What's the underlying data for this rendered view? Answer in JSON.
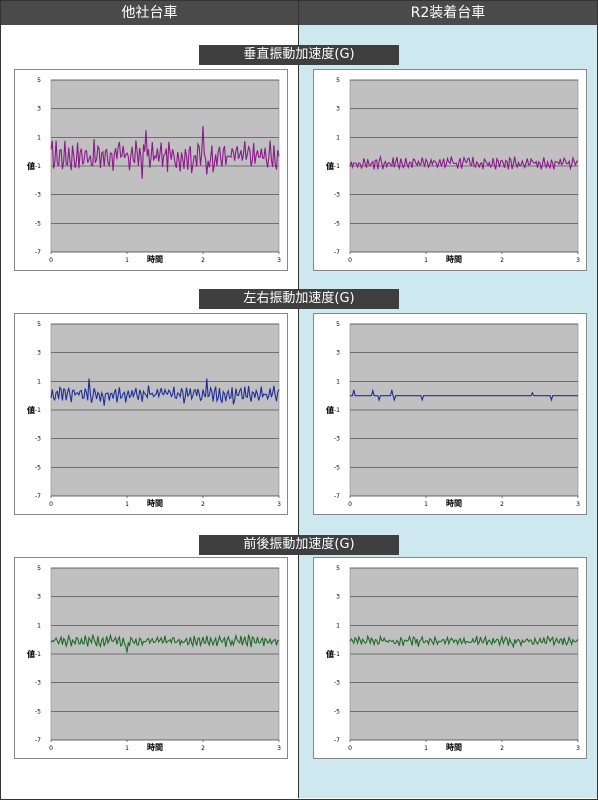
{
  "headers": {
    "left": "他社台車",
    "right": "R2装着台車"
  },
  "sections": [
    {
      "title": "垂直振動加速度(G)"
    },
    {
      "title": "左右振動加速度(G)"
    },
    {
      "title": "前後振動加速度(G)"
    }
  ],
  "colors": {
    "vertical": "#8b1a8b",
    "lateral": "#1f2f9a",
    "longitudinal": "#1f6b2a",
    "plot_bg": "#c0c0c0"
  },
  "chart_data": [
    {
      "id": "vert-other",
      "type": "line",
      "section": 0,
      "column": "left",
      "xlabel": "時間",
      "ylabel": "値",
      "xlim": [
        0,
        3
      ],
      "ylim": [
        -7,
        5
      ],
      "x_ticks": [
        "0",
        "1",
        "2",
        "3"
      ],
      "y_ticks": [
        "5",
        "3",
        "1",
        "-1",
        "-3",
        "-5",
        "-7"
      ],
      "series": [
        {
          "color": "#8b1a8b",
          "baseline": -0.3,
          "amplitude": 1.0,
          "spikes": [
            [
              1.2,
              -1.9
            ],
            [
              1.25,
              1.5
            ],
            [
              2.0,
              1.8
            ],
            [
              2.05,
              -1.6
            ],
            [
              1.85,
              -1.5
            ]
          ]
        }
      ]
    },
    {
      "id": "vert-r2",
      "type": "line",
      "section": 0,
      "column": "right",
      "xlabel": "時間",
      "ylabel": "値",
      "xlim": [
        0,
        3
      ],
      "ylim": [
        -7,
        5
      ],
      "x_ticks": [
        "0",
        "1",
        "2",
        "3"
      ],
      "y_ticks": [
        "5",
        "3",
        "1",
        "-1",
        "-3",
        "-5",
        "-7"
      ],
      "series": [
        {
          "color": "#8b1a8b",
          "baseline": -0.8,
          "amplitude": 0.4,
          "spikes": []
        }
      ]
    },
    {
      "id": "lat-other",
      "type": "line",
      "section": 1,
      "column": "left",
      "xlabel": "時間",
      "ylabel": "値",
      "xlim": [
        0,
        3
      ],
      "ylim": [
        -7,
        5
      ],
      "x_ticks": [
        "0",
        "1",
        "2",
        "3"
      ],
      "y_ticks": [
        "5",
        "3",
        "1",
        "-1",
        "-3",
        "-5",
        "-7"
      ],
      "series": [
        {
          "color": "#1f2f9a",
          "baseline": 0.1,
          "amplitude": 0.55,
          "spikes": [
            [
              0.5,
              1.2
            ],
            [
              2.05,
              1.2
            ],
            [
              0.7,
              -0.7
            ],
            [
              2.4,
              -0.6
            ]
          ]
        }
      ]
    },
    {
      "id": "lat-r2",
      "type": "line",
      "section": 1,
      "column": "right",
      "xlabel": "時間",
      "ylabel": "値",
      "xlim": [
        0,
        3
      ],
      "ylim": [
        -7,
        5
      ],
      "x_ticks": [
        "0",
        "1",
        "2",
        "3"
      ],
      "y_ticks": [
        "5",
        "3",
        "1",
        "-1",
        "-3",
        "-5",
        "-7"
      ],
      "series": [
        {
          "color": "#1f2f9a",
          "baseline": 0.0,
          "amplitude": 0.0,
          "spikes": [
            [
              0.05,
              0.4
            ],
            [
              0.3,
              0.35
            ],
            [
              0.38,
              -0.3
            ],
            [
              0.55,
              0.4
            ],
            [
              0.58,
              -0.3
            ],
            [
              0.95,
              -0.3
            ],
            [
              2.4,
              0.2
            ],
            [
              2.65,
              -0.3
            ]
          ]
        }
      ]
    },
    {
      "id": "lon-other",
      "type": "line",
      "section": 2,
      "column": "left",
      "xlabel": "時間",
      "ylabel": "値",
      "xlim": [
        0,
        3
      ],
      "ylim": [
        -7,
        5
      ],
      "x_ticks": [
        "0",
        "1",
        "2",
        "3"
      ],
      "y_ticks": [
        "5",
        "3",
        "1",
        "-1",
        "-3",
        "-5",
        "-7"
      ],
      "series": [
        {
          "color": "#1f6b2a",
          "baseline": -0.1,
          "amplitude": 0.35,
          "spikes": [
            [
              1.0,
              -0.9
            ],
            [
              0.55,
              0.35
            ],
            [
              2.6,
              0.35
            ]
          ]
        }
      ]
    },
    {
      "id": "lon-r2",
      "type": "line",
      "section": 2,
      "column": "right",
      "xlabel": "時間",
      "ylabel": "値",
      "xlim": [
        0,
        3
      ],
      "ylim": [
        -7,
        5
      ],
      "x_ticks": [
        "0",
        "1",
        "2",
        "3"
      ],
      "y_ticks": [
        "5",
        "3",
        "1",
        "-1",
        "-3",
        "-5",
        "-7"
      ],
      "series": [
        {
          "color": "#1f6b2a",
          "baseline": -0.1,
          "amplitude": 0.3,
          "spikes": [
            [
              0.9,
              -0.5
            ],
            [
              2.15,
              -0.5
            ]
          ]
        }
      ]
    }
  ]
}
